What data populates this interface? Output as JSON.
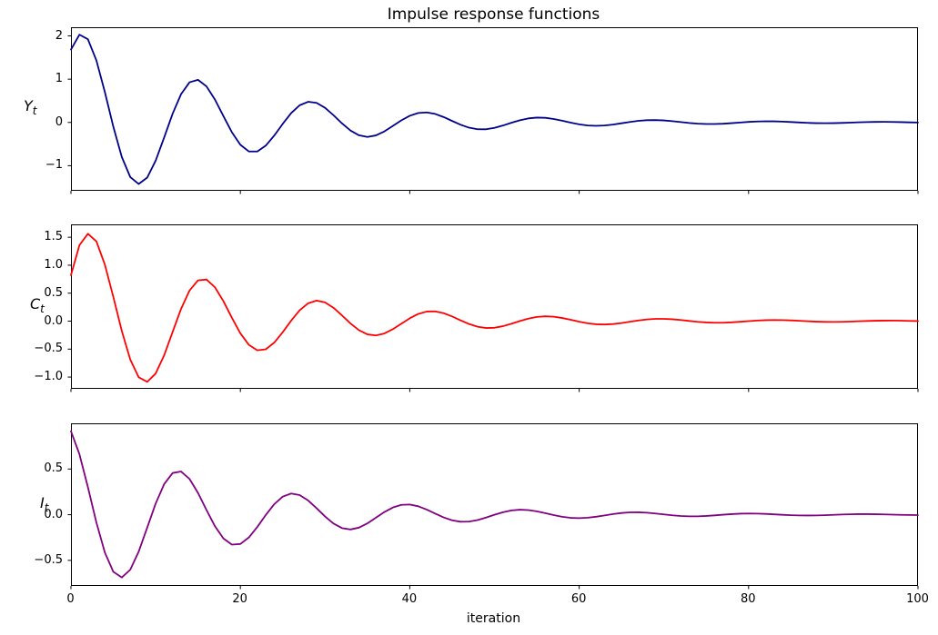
{
  "chart_data": {
    "type": "line",
    "title": "Impulse response functions",
    "xlabel": "iteration",
    "x_range": [
      0,
      100
    ],
    "x_step": 1,
    "x_ticks": [
      0,
      20,
      40,
      60,
      80,
      100
    ],
    "x_tick_labels": [
      "0",
      "20",
      "40",
      "60",
      "80",
      "100"
    ],
    "grid": false,
    "legend": "none",
    "subplots": [
      {
        "name": "output-irf",
        "ylabel_main": "Y",
        "ylabel_sub": "t",
        "color": "#00008B",
        "line_width": 1.8,
        "ylim": [
          -1.58,
          2.2
        ],
        "y_ticks": [
          2,
          1,
          0,
          -1
        ],
        "y_tick_labels": [
          "2",
          "1",
          "0",
          "−1"
        ],
        "model": {
          "form": "y(t)=A*exp(-lambda*t)*cos(2*pi*(t-t0)/T)",
          "A": 2.2,
          "lambda": 0.0536,
          "T": 13.5,
          "t0": 1.5
        },
        "keypoints_t_y": [
          [
            0,
            1.69
          ],
          [
            1,
            2.03
          ],
          [
            2,
            1.92
          ],
          [
            8,
            -1.41
          ],
          [
            15,
            0.98
          ],
          [
            22,
            -0.67
          ],
          [
            29,
            0.45
          ],
          [
            35,
            -0.33
          ],
          [
            42,
            0.23
          ],
          [
            49,
            -0.16
          ],
          [
            56,
            0.11
          ],
          [
            62,
            -0.08
          ],
          [
            69,
            0.05
          ],
          [
            76,
            -0.04
          ],
          [
            83,
            0.03
          ],
          [
            89,
            -0.02
          ],
          [
            100,
            0.01
          ]
        ]
      },
      {
        "name": "consumption-irf",
        "ylabel_main": "C",
        "ylabel_sub": "t",
        "color": "#FF0000",
        "line_width": 1.8,
        "ylim": [
          -1.21,
          1.73
        ],
        "y_ticks": [
          1.5,
          1.0,
          0.5,
          0.0,
          -0.5,
          -1.0
        ],
        "y_tick_labels": [
          "1.5",
          "1.0",
          "0.5",
          "0.0",
          "−0.5",
          "−1.0"
        ],
        "model": {
          "form": "y(t)=A*exp(-lambda*t)*cos(2*pi*(t-t0)/T)",
          "A": 1.76,
          "lambda": 0.0536,
          "T": 13.5,
          "t0": 2.33
        },
        "keypoints_t_y": [
          [
            0,
            0.82
          ],
          [
            1,
            1.36
          ],
          [
            2,
            1.56
          ],
          [
            9,
            -1.09
          ],
          [
            16,
            0.75
          ],
          [
            23,
            -0.53
          ],
          [
            29,
            0.37
          ],
          [
            36,
            -0.26
          ],
          [
            43,
            0.18
          ],
          [
            50,
            -0.13
          ],
          [
            56,
            0.09
          ],
          [
            63,
            -0.06
          ],
          [
            70,
            0.04
          ],
          [
            77,
            -0.03
          ],
          [
            83,
            0.02
          ],
          [
            90,
            -0.01
          ],
          [
            100,
            0.01
          ]
        ]
      },
      {
        "name": "investment-irf",
        "ylabel_main": "I",
        "ylabel_sub": "t",
        "color": "#800080",
        "line_width": 1.8,
        "ylim": [
          -0.78,
          1.0
        ],
        "y_ticks": [
          0.5,
          0.0,
          -0.5
        ],
        "y_tick_labels": [
          "0.5",
          "0.0",
          "−0.5"
        ],
        "model": {
          "form": "y(t)=A*exp(-lambda*t)*cos(2*pi*(t-t0)/T)",
          "A": 0.95,
          "lambda": 0.0536,
          "T": 13.5,
          "t0": -0.6
        },
        "keypoints_t_y": [
          [
            0,
            0.91
          ],
          [
            1,
            0.66
          ],
          [
            6,
            -0.69
          ],
          [
            13,
            0.45
          ],
          [
            20,
            -0.32
          ],
          [
            26,
            0.23
          ],
          [
            33,
            -0.16
          ],
          [
            40,
            0.11
          ],
          [
            47,
            -0.08
          ],
          [
            54,
            0.05
          ],
          [
            60,
            -0.04
          ],
          [
            67,
            0.03
          ],
          [
            74,
            -0.02
          ],
          [
            80,
            0.01
          ],
          [
            87,
            -0.01
          ],
          [
            100,
            0.0
          ]
        ]
      }
    ]
  }
}
